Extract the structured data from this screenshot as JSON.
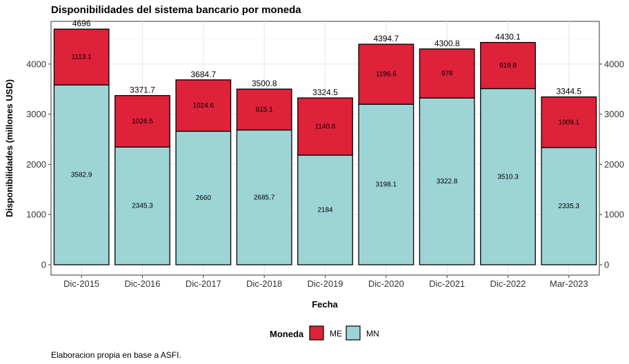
{
  "chart_data": {
    "type": "bar",
    "stacked": true,
    "title": "Disponibilidades del sistema bancario por moneda",
    "xlabel": "Fecha",
    "ylabel": "Disponibilidades (millones USD)",
    "ylim": [
      0,
      4850
    ],
    "yticks": [
      0,
      1000,
      2000,
      3000,
      4000
    ],
    "grid": true,
    "legend_position": "bottom",
    "legend_title": "Moneda",
    "categories": [
      "Dic-2015",
      "Dic-2016",
      "Dic-2017",
      "Dic-2018",
      "Dic-2019",
      "Dic-2020",
      "Dic-2021",
      "Dic-2022",
      "Mar-2023"
    ],
    "series": [
      {
        "name": "MN",
        "color": "#9dd4d6",
        "values": [
          3582.9,
          2345.3,
          2660,
          2685.7,
          2184,
          3198.1,
          3322.8,
          3510.3,
          2335.3
        ],
        "labels": [
          "3582.9",
          "2345.3",
          "2660",
          "2685.7",
          "2184",
          "3198.1",
          "3322.8",
          "3510.3",
          "2335.3"
        ]
      },
      {
        "name": "ME",
        "color": "#de223a",
        "values": [
          1113.1,
          1026.5,
          1024.6,
          815.1,
          1140.6,
          1196.6,
          978,
          919.8,
          1009.1
        ],
        "labels": [
          "1113.1",
          "1026.5",
          "1024.6",
          "815.1",
          "1140.6",
          "1196.6",
          "978",
          "919.8",
          "1009.1"
        ]
      }
    ],
    "totals": [
      "4696",
      "3371.7",
      "3684.7",
      "3500.8",
      "3324.5",
      "4394.7",
      "4300.8",
      "4430.1",
      "3344.5"
    ],
    "legend_order": [
      "ME",
      "MN"
    ],
    "caption": "Elaboracion propia en base a ASFI."
  }
}
